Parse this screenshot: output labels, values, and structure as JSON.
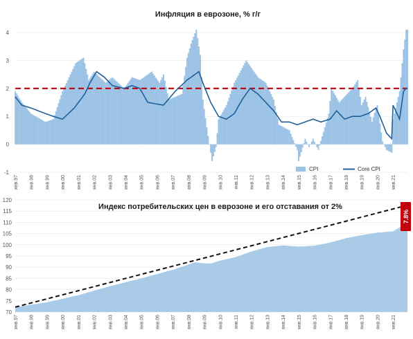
{
  "colors": {
    "cpi": "#9cc3e5",
    "core": "#1f5f9a",
    "target": "#c0000b",
    "area": "#a9cbe8",
    "trend": "#111111",
    "tag_bg": "#c0000b",
    "grid": "#e6e6e6"
  },
  "chart_data": [
    {
      "type": "bar",
      "title": "Инфляция в еврозоне, % г/г",
      "ylim": [
        -1,
        4
      ],
      "yticks": [
        "-1",
        "0",
        "1",
        "2",
        "3",
        "4"
      ],
      "target_line": 2,
      "x_tick_labels": [
        "янв.97",
        "янв.98",
        "янв.99",
        "янв.00",
        "янв.01",
        "янв.02",
        "янв.03",
        "янв.04",
        "янв.05",
        "янв.06",
        "янв.07",
        "янв.08",
        "янв.09",
        "янв.10",
        "янв.11",
        "янв.12",
        "янв.13",
        "янв.14",
        "янв.15",
        "янв.16",
        "янв.17",
        "янв.18",
        "янв.19",
        "янв.20",
        "янв.21"
      ],
      "legend": [
        "CPI",
        "Core CPI"
      ],
      "legend_position": "bottom-right",
      "series": [
        {
          "name": "CPI",
          "kind": "bar",
          "anchors": [
            [
              "1997-01",
              1.9
            ],
            [
              "1997-06",
              1.5
            ],
            [
              "1998-01",
              1.1
            ],
            [
              "1998-12",
              0.8
            ],
            [
              "1999-06",
              0.9
            ],
            [
              "2000-01",
              1.9
            ],
            [
              "2000-11",
              2.9
            ],
            [
              "2001-05",
              3.1
            ],
            [
              "2001-09",
              2.3
            ],
            [
              "2002-01",
              2.6
            ],
            [
              "2002-10",
              2.2
            ],
            [
              "2003-03",
              2.4
            ],
            [
              "2003-12",
              2.0
            ],
            [
              "2004-06",
              2.4
            ],
            [
              "2004-12",
              2.3
            ],
            [
              "2005-09",
              2.6
            ],
            [
              "2006-03",
              2.2
            ],
            [
              "2006-06",
              2.5
            ],
            [
              "2006-10",
              1.6
            ],
            [
              "2007-08",
              1.8
            ],
            [
              "2007-12",
              3.1
            ],
            [
              "2008-03",
              3.6
            ],
            [
              "2008-07",
              4.1
            ],
            [
              "2008-10",
              3.2
            ],
            [
              "2008-12",
              1.6
            ],
            [
              "2009-03",
              0.6
            ],
            [
              "2009-07",
              -0.6
            ],
            [
              "2009-10",
              -0.1
            ],
            [
              "2009-12",
              0.9
            ],
            [
              "2010-06",
              1.4
            ],
            [
              "2010-12",
              2.2
            ],
            [
              "2011-09",
              3.0
            ],
            [
              "2012-06",
              2.4
            ],
            [
              "2012-12",
              2.2
            ],
            [
              "2013-06",
              1.6
            ],
            [
              "2013-10",
              0.7
            ],
            [
              "2014-06",
              0.5
            ],
            [
              "2014-12",
              -0.2
            ],
            [
              "2015-01",
              -0.6
            ],
            [
              "2015-06",
              0.2
            ],
            [
              "2015-09",
              -0.1
            ],
            [
              "2015-12",
              0.2
            ],
            [
              "2016-04",
              -0.2
            ],
            [
              "2016-12",
              1.1
            ],
            [
              "2017-02",
              2.0
            ],
            [
              "2017-08",
              1.5
            ],
            [
              "2018-06",
              2.0
            ],
            [
              "2018-10",
              2.3
            ],
            [
              "2019-01",
              1.4
            ],
            [
              "2019-04",
              1.7
            ],
            [
              "2019-09",
              0.8
            ],
            [
              "2019-12",
              1.3
            ],
            [
              "2020-01",
              1.4
            ],
            [
              "2020-05",
              0.1
            ],
            [
              "2020-08",
              -0.2
            ],
            [
              "2020-12",
              -0.3
            ],
            [
              "2021-01",
              0.9
            ],
            [
              "2021-06",
              1.9
            ],
            [
              "2021-09",
              3.4
            ],
            [
              "2021-11",
              4.1
            ]
          ]
        },
        {
          "name": "Core CPI",
          "kind": "line",
          "anchors": [
            [
              "1997-01",
              1.7
            ],
            [
              "1997-06",
              1.4
            ],
            [
              "1998-01",
              1.3
            ],
            [
              "1998-12",
              1.1
            ],
            [
              "1999-06",
              1.0
            ],
            [
              "2000-01",
              0.9
            ],
            [
              "2000-10",
              1.3
            ],
            [
              "2001-06",
              1.8
            ],
            [
              "2001-10",
              2.2
            ],
            [
              "2002-03",
              2.6
            ],
            [
              "2002-06",
              2.5
            ],
            [
              "2002-09",
              2.4
            ],
            [
              "2003-03",
              2.1
            ],
            [
              "2003-12",
              2.0
            ],
            [
              "2004-06",
              2.1
            ],
            [
              "2004-12",
              2.0
            ],
            [
              "2005-06",
              1.5
            ],
            [
              "2006-06",
              1.4
            ],
            [
              "2007-03",
              1.9
            ],
            [
              "2007-12",
              2.3
            ],
            [
              "2008-06",
              2.5
            ],
            [
              "2008-09",
              2.6
            ],
            [
              "2008-12",
              2.2
            ],
            [
              "2009-06",
              1.5
            ],
            [
              "2009-12",
              1.0
            ],
            [
              "2010-06",
              0.9
            ],
            [
              "2010-12",
              1.1
            ],
            [
              "2011-06",
              1.6
            ],
            [
              "2011-12",
              2.0
            ],
            [
              "2012-06",
              1.8
            ],
            [
              "2012-12",
              1.5
            ],
            [
              "2013-06",
              1.2
            ],
            [
              "2013-12",
              0.8
            ],
            [
              "2014-06",
              0.8
            ],
            [
              "2014-12",
              0.7
            ],
            [
              "2015-06",
              0.8
            ],
            [
              "2015-12",
              0.9
            ],
            [
              "2016-06",
              0.8
            ],
            [
              "2017-01",
              0.9
            ],
            [
              "2017-06",
              1.2
            ],
            [
              "2017-12",
              0.9
            ],
            [
              "2018-06",
              1.0
            ],
            [
              "2018-12",
              1.0
            ],
            [
              "2019-06",
              1.1
            ],
            [
              "2019-12",
              1.3
            ],
            [
              "2020-03",
              1.0
            ],
            [
              "2020-08",
              0.4
            ],
            [
              "2020-12",
              0.2
            ],
            [
              "2021-01",
              1.4
            ],
            [
              "2021-06",
              0.9
            ],
            [
              "2021-09",
              1.9
            ],
            [
              "2021-11",
              2.0
            ]
          ]
        }
      ]
    },
    {
      "type": "area",
      "title": "Индекс потребительских цен в еврозоне и его отставания от 2%",
      "ylim": [
        70,
        120
      ],
      "yticks": [
        "70",
        "75",
        "80",
        "85",
        "90",
        "95",
        "100",
        "105",
        "110",
        "115",
        "120"
      ],
      "x_tick_labels": [
        "янв.97",
        "янв.98",
        "янв.99",
        "янв.00",
        "янв.01",
        "янв.02",
        "янв.03",
        "янв.04",
        "янв.05",
        "янв.06",
        "янв.07",
        "янв.08",
        "янв.09",
        "янв.10",
        "янв.11",
        "янв.12",
        "янв.13",
        "янв.14",
        "янв.15",
        "янв.16",
        "янв.17",
        "янв.18",
        "янв.19",
        "янв.20",
        "янв.21"
      ],
      "series": [
        {
          "name": "CPI index",
          "kind": "area",
          "anchors": [
            [
              "1997-01",
              72.2
            ],
            [
              "1999-01",
              74.3
            ],
            [
              "2001-01",
              77.5
            ],
            [
              "2003-01",
              81.5
            ],
            [
              "2005-01",
              85.0
            ],
            [
              "2007-01",
              88.8
            ],
            [
              "2008-06",
              92.2
            ],
            [
              "2008-12",
              91.8
            ],
            [
              "2009-06",
              91.6
            ],
            [
              "2010-01",
              92.9
            ],
            [
              "2011-01",
              94.5
            ],
            [
              "2012-01",
              97.0
            ],
            [
              "2013-01",
              99.0
            ],
            [
              "2014-01",
              99.7
            ],
            [
              "2015-01",
              99.2
            ],
            [
              "2016-01",
              99.6
            ],
            [
              "2017-01",
              101.0
            ],
            [
              "2018-01",
              102.9
            ],
            [
              "2019-01",
              104.3
            ],
            [
              "2020-01",
              105.4
            ],
            [
              "2021-01",
              106.0
            ],
            [
              "2021-11",
              109.5
            ]
          ]
        },
        {
          "name": "2% trend",
          "kind": "dashed-line",
          "anchors": [
            [
              "1997-01",
              72.2
            ],
            [
              "2021-11",
              117.5
            ]
          ]
        }
      ],
      "annotation": "7.8%"
    }
  ]
}
